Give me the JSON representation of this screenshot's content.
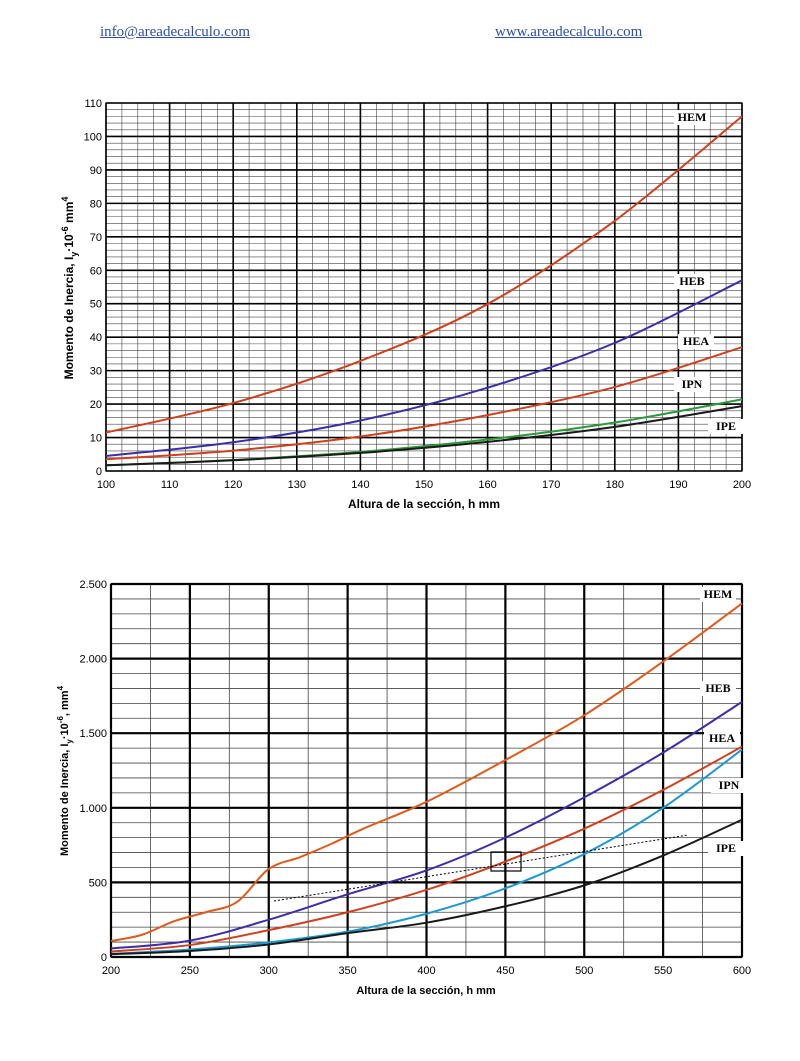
{
  "header": {
    "email": "info@areadecalculo.com",
    "website": "www.areadecalculo.com"
  },
  "chart_data": [
    {
      "type": "line",
      "xlabel": "Altura de la sección, h mm",
      "ylabel_prefix": "Momento de Inercia, I",
      "ylabel_sub": "y",
      "ylabel_mid": "·10",
      "ylabel_exp": "-6",
      "ylabel_suffix": " mm",
      "ylabel_unit_exp": "4",
      "xlim": [
        100,
        200
      ],
      "ylim": [
        0,
        110
      ],
      "xticks": [
        100,
        110,
        120,
        130,
        140,
        150,
        160,
        170,
        180,
        190,
        200
      ],
      "yticks": [
        0,
        10,
        20,
        30,
        40,
        50,
        60,
        70,
        80,
        90,
        100,
        110
      ],
      "ytick_labels": [
        "0",
        "10",
        "20",
        "30",
        "40",
        "50",
        "60",
        "70",
        "80",
        "90",
        "100",
        "110"
      ],
      "grid": true,
      "series": [
        {
          "name": "HEM",
          "color": "#d0401c",
          "x": [
            100,
            120,
            140,
            160,
            180,
            200
          ],
          "y": [
            11.5,
            20.3,
            32.9,
            49.9,
            74.8,
            106
          ]
        },
        {
          "name": "HEB",
          "color": "#3c2ea8",
          "x": [
            100,
            120,
            140,
            160,
            180,
            200
          ],
          "y": [
            4.5,
            8.6,
            15.1,
            24.9,
            38.3,
            57
          ]
        },
        {
          "name": "HEA",
          "color": "#d0401c",
          "x": [
            100,
            120,
            140,
            160,
            180,
            200
          ],
          "y": [
            3.5,
            6.1,
            10.3,
            16.7,
            25.1,
            37
          ]
        },
        {
          "name": "IPN",
          "color": "#2a9a3a",
          "x": [
            100,
            120,
            140,
            160,
            180,
            200
          ],
          "y": [
            1.7,
            3.3,
            5.7,
            9.4,
            14.5,
            21.4
          ]
        },
        {
          "name": "IPE",
          "color": "#1a1a1a",
          "x": [
            100,
            120,
            140,
            160,
            180,
            200
          ],
          "y": [
            1.7,
            3.2,
            5.4,
            8.7,
            13.2,
            19.4
          ]
        }
      ],
      "label_positions_hint": "right side",
      "labels": [
        "HEM",
        "HEB",
        "HEA",
        "IPN",
        "IPE"
      ]
    },
    {
      "type": "line",
      "xlabel": "Altura de la sección, h mm",
      "ylabel_prefix": "Momento de Inercia, I",
      "ylabel_sub": "y",
      "ylabel_mid": "·10",
      "ylabel_exp": "-6",
      "ylabel_suffix": ", mm",
      "ylabel_unit_exp": "4",
      "xlim": [
        200,
        600
      ],
      "ylim": [
        0,
        2500
      ],
      "xticks": [
        200,
        250,
        300,
        350,
        400,
        450,
        500,
        550,
        600
      ],
      "yticks": [
        0,
        500,
        1000,
        1500,
        2000,
        2500
      ],
      "ytick_labels": [
        "0",
        "500",
        "1.000",
        "1.500",
        "2.000",
        "2.500"
      ],
      "grid": true,
      "series": [
        {
          "name": "HEM",
          "color": "#e05a18",
          "x": [
            200,
            220,
            240,
            260,
            280,
            300,
            320,
            340,
            360,
            400,
            450,
            500,
            550,
            600
          ],
          "y": [
            107,
            150,
            240,
            300,
            370,
            590,
            670,
            760,
            860,
            1040,
            1320,
            1620,
            1980,
            2370
          ]
        },
        {
          "name": "HEB",
          "color": "#3c2ea8",
          "x": [
            200,
            250,
            300,
            350,
            400,
            450,
            500,
            550,
            600
          ],
          "y": [
            57,
            110,
            250,
            420,
            580,
            800,
            1070,
            1370,
            1710
          ]
        },
        {
          "name": "HEA",
          "color": "#d0401c",
          "x": [
            200,
            250,
            300,
            350,
            400,
            450,
            500,
            550,
            600
          ],
          "y": [
            37,
            80,
            180,
            300,
            450,
            640,
            860,
            1120,
            1410
          ]
        },
        {
          "name": "IPN",
          "color": "#1a9ad0",
          "x": [
            200,
            250,
            300,
            350,
            400,
            450,
            500,
            550,
            600
          ],
          "y": [
            21,
            50,
            98,
            170,
            290,
            460,
            690,
            1000,
            1390
          ]
        },
        {
          "name": "IPE",
          "color": "#1a1a1a",
          "x": [
            200,
            250,
            300,
            350,
            400,
            450,
            500,
            550,
            600
          ],
          "y": [
            19,
            40,
            84,
            160,
            230,
            340,
            480,
            680,
            920
          ]
        }
      ],
      "labels": [
        "HEM",
        "HEB",
        "HEA",
        "IPN",
        "IPE"
      ]
    }
  ]
}
